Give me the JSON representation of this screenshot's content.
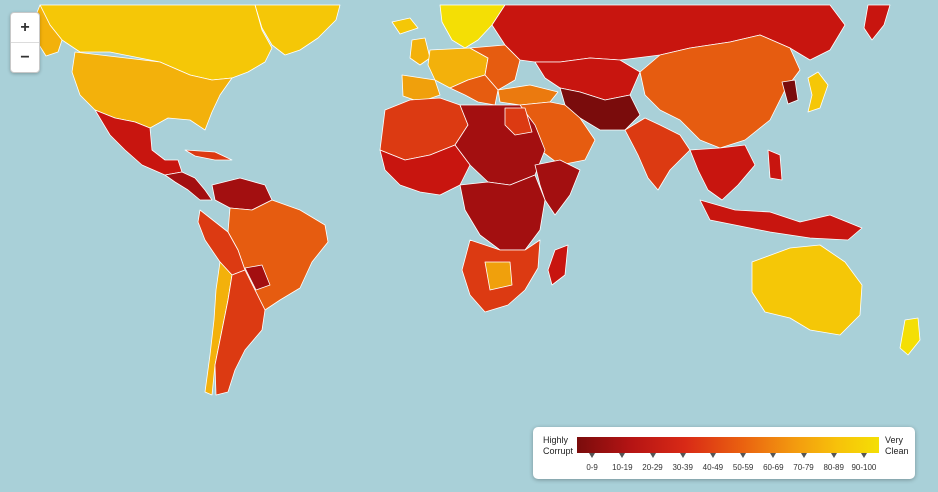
{
  "map": {
    "background_color": "#a9d0d8",
    "colors": {
      "c0": "#7a0c0c",
      "c10": "#a30f10",
      "c20": "#c8150f",
      "c30": "#dc3a12",
      "c40": "#e65c10",
      "c50": "#eb7a0f",
      "c60": "#f0a00c",
      "c70": "#f3b10b",
      "c80": "#f5c707",
      "c90": "#f4df05"
    }
  },
  "zoom": {
    "zoom_in_label": "+",
    "zoom_out_label": "−"
  },
  "legend": {
    "left_label_1": "Highly",
    "left_label_2": "Corrupt",
    "right_label_1": "Very",
    "right_label_2": "Clean",
    "ranges": [
      "0-9",
      "10-19",
      "20-29",
      "30-39",
      "40-49",
      "50-59",
      "60-69",
      "70-79",
      "80-89",
      "90-100"
    ]
  }
}
